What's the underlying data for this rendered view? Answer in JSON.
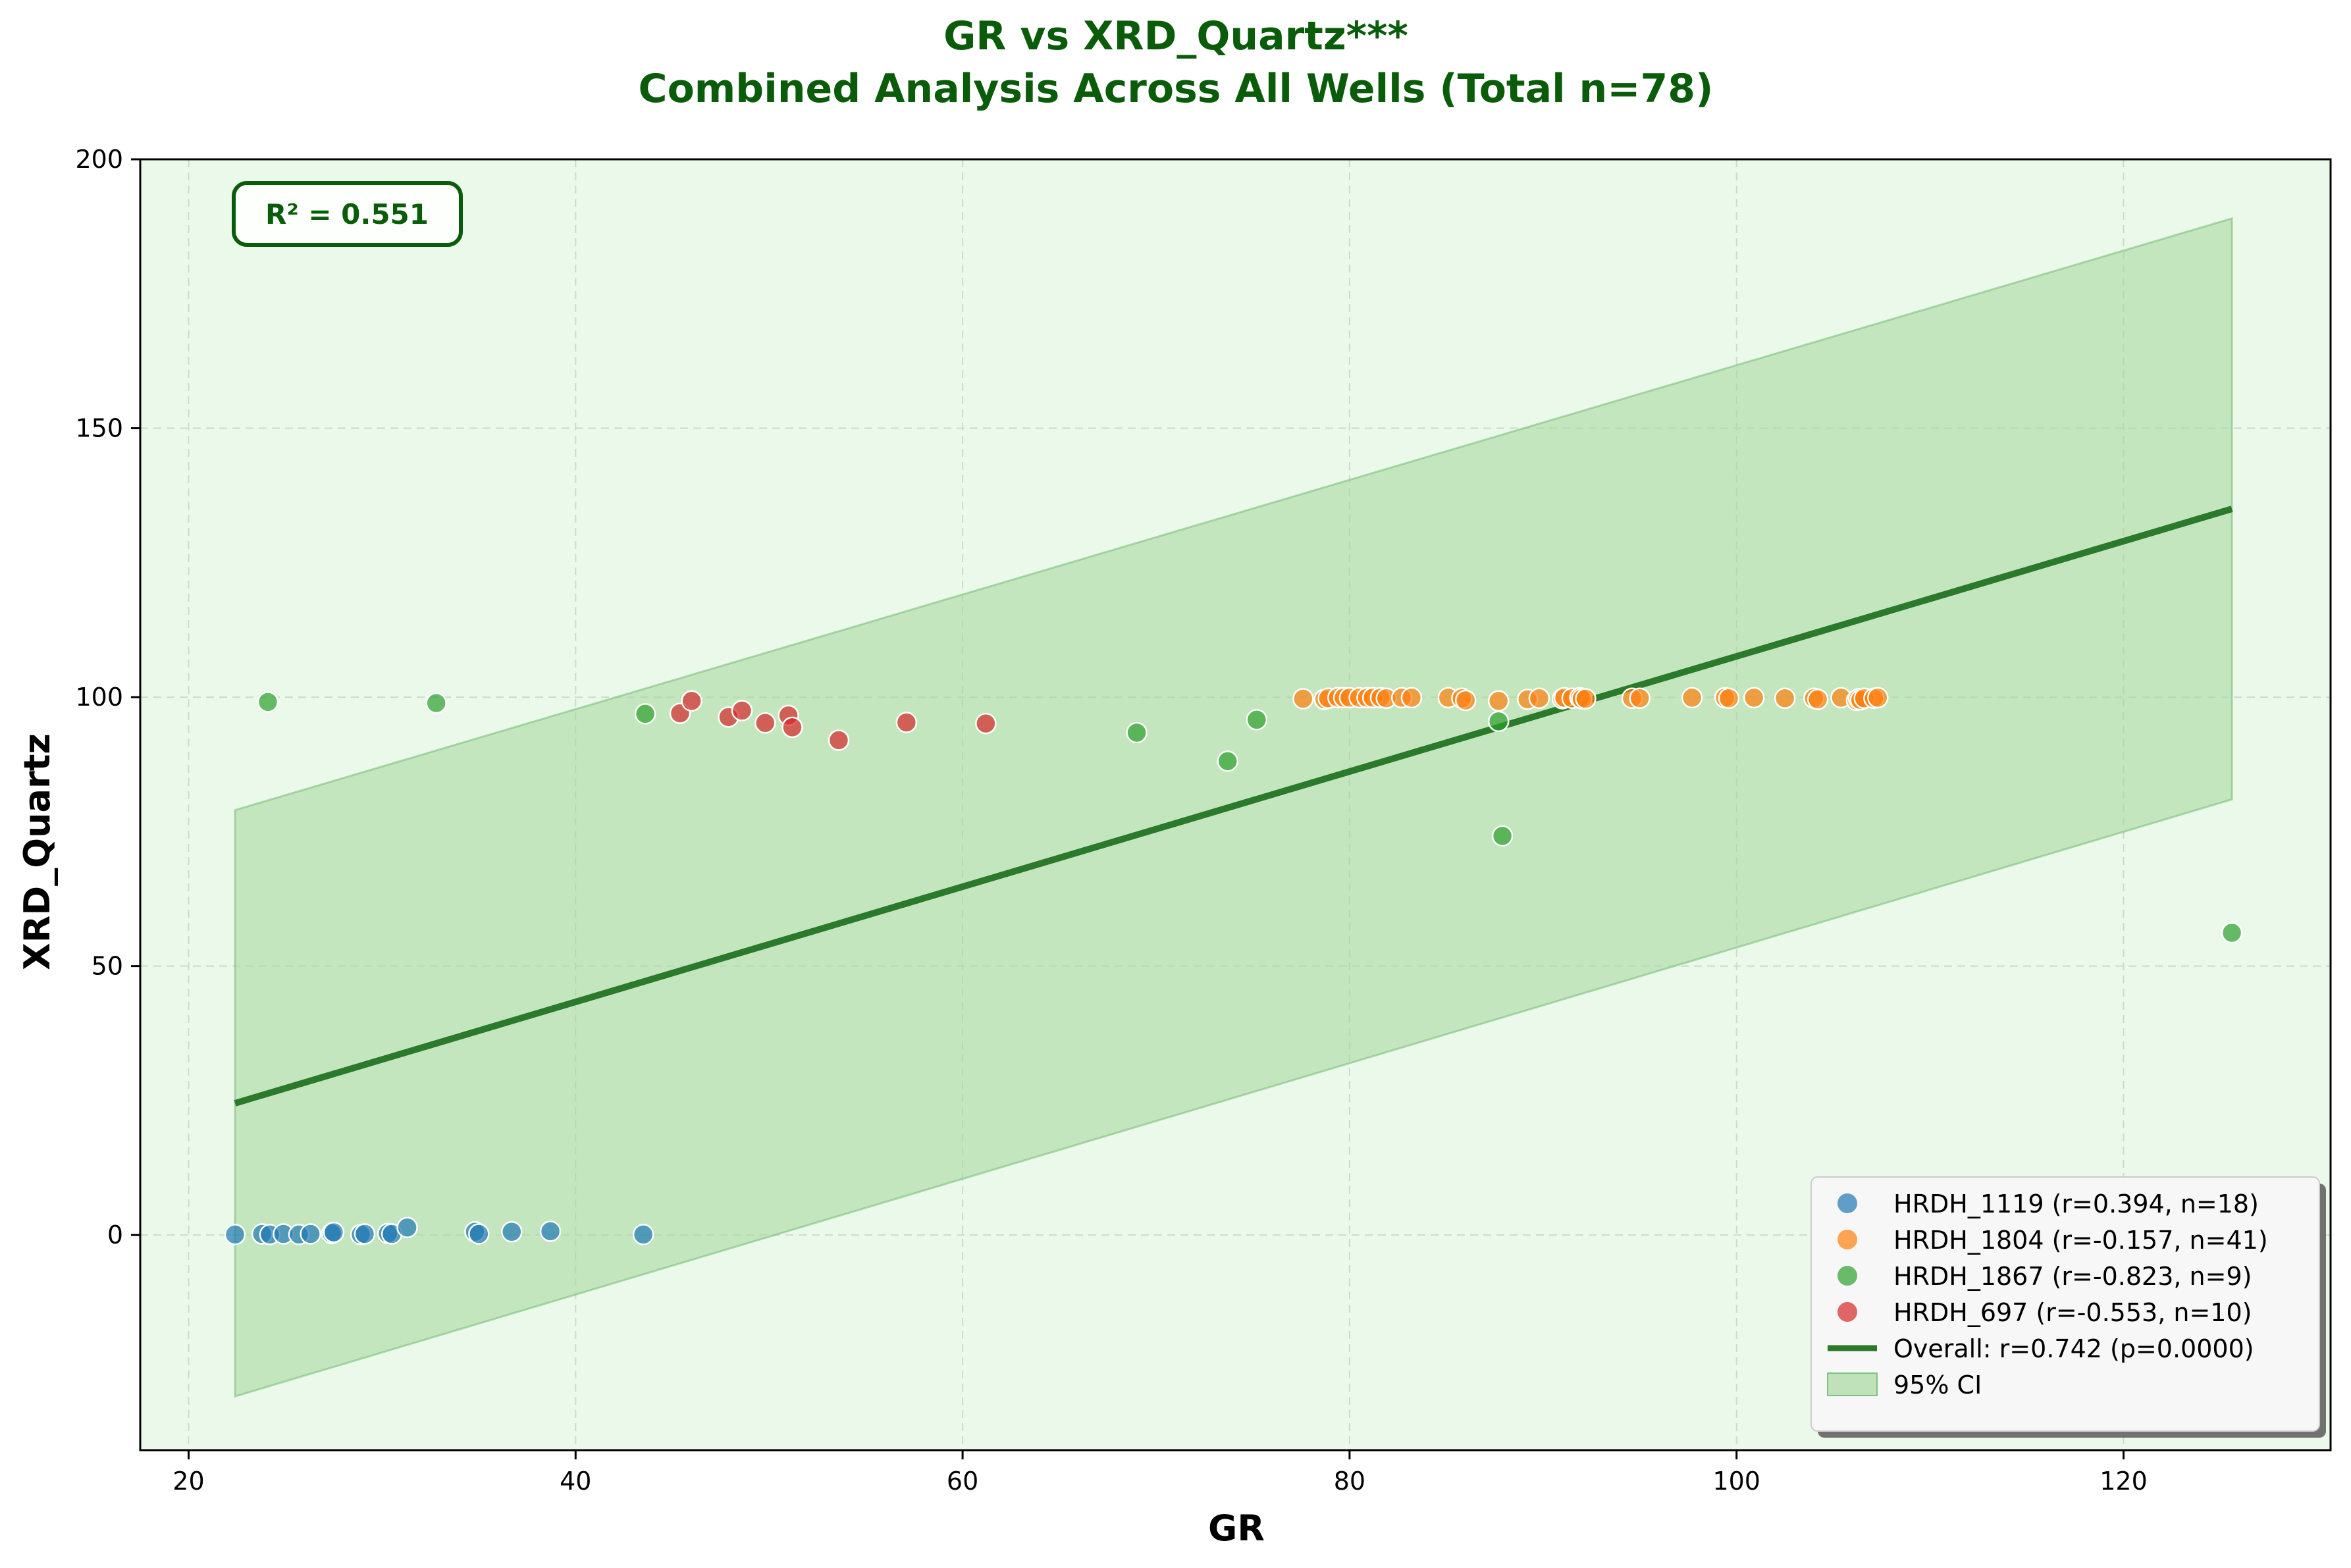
{
  "chart_data": {
    "type": "scatter",
    "title": "GR vs XRD_Quartz***",
    "subtitle": "Combined Analysis Across All Wells (Total n=78)",
    "xlabel": "GR",
    "ylabel": "XRD_Quartz",
    "xlim": [
      17.5,
      130.7
    ],
    "ylim": [
      -40,
      200
    ],
    "xticks": [
      20,
      40,
      60,
      80,
      100,
      120
    ],
    "yticks": [
      0,
      50,
      100,
      150,
      200
    ],
    "grid": true,
    "legend_position": "bottom-right",
    "annotation": "R² = 0.551",
    "colors": {
      "background": "#ebf9eb",
      "title": "#0a5c0a",
      "fit_line": "#2b7a2b",
      "ci_band": "#a8d8a0"
    },
    "series": [
      {
        "name": "HRDH_1119 (r=0.394, n=18)",
        "color": "#1f77b4",
        "points": [
          [
            22.4,
            0.1
          ],
          [
            23.8,
            0.2
          ],
          [
            24.2,
            0.1
          ],
          [
            24.9,
            0.2
          ],
          [
            25.7,
            0.1
          ],
          [
            26.3,
            0.2
          ],
          [
            27.4,
            0.3
          ],
          [
            27.5,
            0.5
          ],
          [
            28.9,
            0.1
          ],
          [
            29.1,
            0.2
          ],
          [
            30.3,
            0.3
          ],
          [
            30.5,
            0.2
          ],
          [
            31.3,
            1.4
          ],
          [
            34.8,
            0.6
          ],
          [
            35.0,
            0.2
          ],
          [
            36.7,
            0.6
          ],
          [
            38.7,
            0.7
          ],
          [
            43.5,
            0.1
          ]
        ]
      },
      {
        "name": "HRDH_1804 (r=-0.157, n=41)",
        "color": "#ff7f0e",
        "points": [
          [
            77.6,
            99.7
          ],
          [
            78.7,
            99.6
          ],
          [
            78.9,
            99.8
          ],
          [
            79.4,
            99.9
          ],
          [
            79.7,
            99.9
          ],
          [
            80.0,
            99.9
          ],
          [
            80.5,
            99.9
          ],
          [
            80.9,
            99.9
          ],
          [
            81.2,
            99.9
          ],
          [
            81.6,
            99.9
          ],
          [
            81.9,
            99.8
          ],
          [
            82.7,
            99.9
          ],
          [
            83.2,
            99.9
          ],
          [
            85.1,
            99.9
          ],
          [
            85.8,
            99.8
          ],
          [
            86.0,
            99.4
          ],
          [
            87.7,
            99.3
          ],
          [
            89.2,
            99.6
          ],
          [
            89.8,
            99.8
          ],
          [
            91.0,
            99.7
          ],
          [
            91.1,
            99.9
          ],
          [
            91.5,
            99.8
          ],
          [
            91.9,
            99.9
          ],
          [
            92.0,
            99.7
          ],
          [
            92.2,
            99.7
          ],
          [
            94.6,
            99.8
          ],
          [
            95.0,
            99.8
          ],
          [
            97.7,
            99.9
          ],
          [
            99.4,
            99.9
          ],
          [
            99.6,
            99.8
          ],
          [
            100.9,
            99.9
          ],
          [
            102.5,
            99.8
          ],
          [
            104.0,
            99.8
          ],
          [
            104.2,
            99.6
          ],
          [
            105.4,
            99.9
          ],
          [
            106.2,
            99.4
          ],
          [
            106.3,
            99.7
          ],
          [
            106.4,
            99.5
          ],
          [
            106.6,
            99.8
          ],
          [
            107.1,
            99.8
          ],
          [
            107.3,
            99.9
          ]
        ]
      },
      {
        "name": "HRDH_1867 (r=-0.823, n=9)",
        "color": "#2ca02c",
        "points": [
          [
            24.1,
            99.1
          ],
          [
            32.8,
            98.9
          ],
          [
            43.6,
            96.9
          ],
          [
            69.0,
            93.4
          ],
          [
            73.7,
            88.1
          ],
          [
            75.2,
            95.8
          ],
          [
            87.7,
            95.5
          ],
          [
            87.9,
            74.2
          ],
          [
            125.6,
            56.2
          ]
        ]
      },
      {
        "name": "HRDH_697 (r=-0.553, n=10)",
        "color": "#d62728",
        "points": [
          [
            45.4,
            97.0
          ],
          [
            46.0,
            99.3
          ],
          [
            47.9,
            96.3
          ],
          [
            48.6,
            97.5
          ],
          [
            49.8,
            95.2
          ],
          [
            51.0,
            96.6
          ],
          [
            51.2,
            94.4
          ],
          [
            53.6,
            92.0
          ],
          [
            57.1,
            95.3
          ],
          [
            61.2,
            95.1
          ]
        ]
      }
    ],
    "fit": {
      "name": "Overall: r=0.742 (p=0.0000)",
      "x": [
        22.4,
        125.6
      ],
      "y": [
        24.5,
        135.0
      ]
    },
    "ci": {
      "name": "95% CI",
      "x": [
        22.4,
        125.6
      ],
      "upper": [
        79.0,
        189.0
      ],
      "lower": [
        -30.0,
        81.0
      ]
    }
  }
}
